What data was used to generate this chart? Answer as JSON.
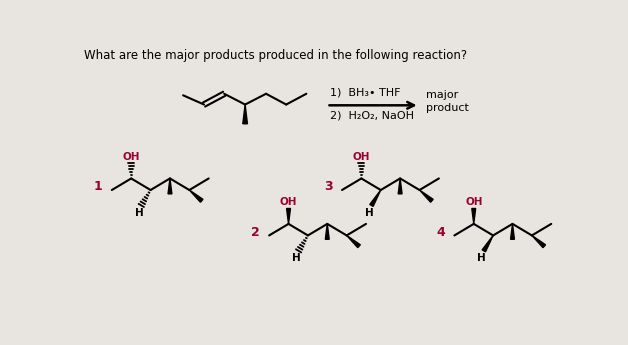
{
  "title": "What are the major products produced in the following reaction?",
  "reagent_line1": "1)  BH₃• THF",
  "reagent_line2": "2)  H₂O₂, NaOH",
  "major_product_label": "major\nproduct",
  "bg_color": "#e8e4df",
  "text_color": "#000000",
  "oh_color": "#990033",
  "number_color": "#990033",
  "fig_width": 6.28,
  "fig_height": 3.45,
  "dpi": 100
}
